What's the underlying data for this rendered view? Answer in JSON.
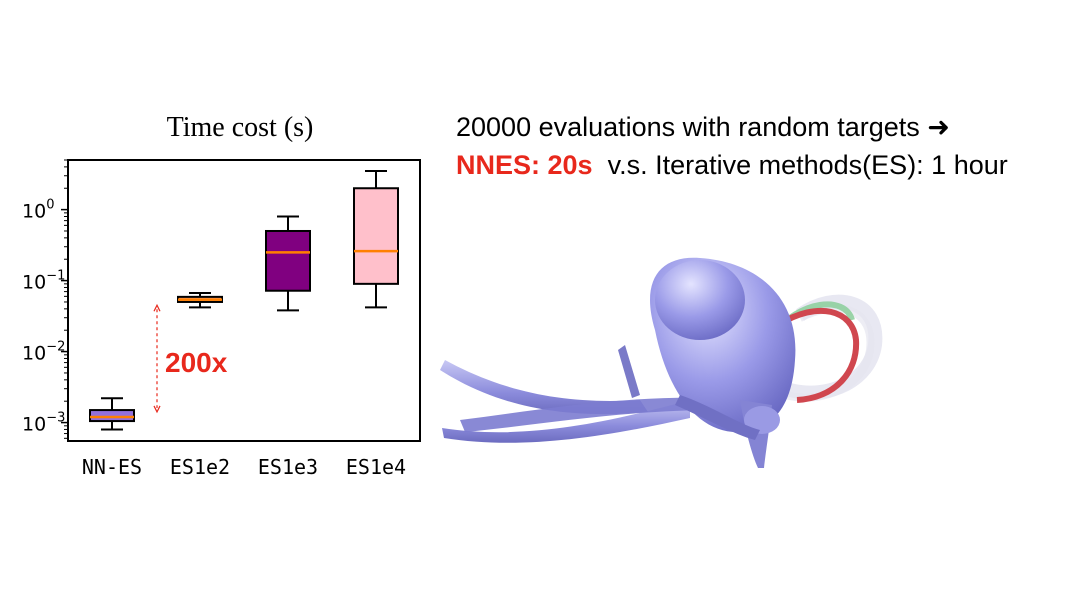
{
  "chart_data": {
    "type": "box",
    "title": "Time cost (s)",
    "y_scale": "log",
    "ylim": [
      0.00055,
      5
    ],
    "y_ticks": [
      0.001,
      0.01,
      0.1,
      1
    ],
    "y_tick_labels": [
      {
        "base": "10",
        "exp": "−3"
      },
      {
        "base": "10",
        "exp": "−2"
      },
      {
        "base": "10",
        "exp": "−1"
      },
      {
        "base": "10",
        "exp": "0"
      }
    ],
    "categories": [
      "NN-ES",
      "ES1e2",
      "ES1e3",
      "ES1e4"
    ],
    "boxes": [
      {
        "name": "NN-ES",
        "whisker_low": 0.0008,
        "q1": 0.00105,
        "median": 0.0012,
        "q3": 0.0015,
        "whisker_high": 0.0022,
        "color": "#9370db"
      },
      {
        "name": "ES1e2",
        "whisker_low": 0.042,
        "q1": 0.05,
        "median": 0.054,
        "q3": 0.059,
        "whisker_high": 0.067,
        "color": "#ffa07a"
      },
      {
        "name": "ES1e3",
        "whisker_low": 0.038,
        "q1": 0.072,
        "median": 0.25,
        "q3": 0.5,
        "whisker_high": 0.8,
        "color": "#800080"
      },
      {
        "name": "ES1e4",
        "whisker_low": 0.042,
        "q1": 0.09,
        "median": 0.26,
        "q3": 2.0,
        "whisker_high": 3.5,
        "color": "#ffc0cb"
      }
    ],
    "median_color": "#ff8000",
    "annotation": {
      "text": "200x",
      "color": "#e8281c",
      "from": 0.0012,
      "to": 0.045
    }
  },
  "side_text": {
    "line1": "20000 evaluations with random targets ➜",
    "line2_highlight": "NNES: 20s",
    "line2_rest": "v.s. Iterative methods(ES): 1 hour"
  }
}
